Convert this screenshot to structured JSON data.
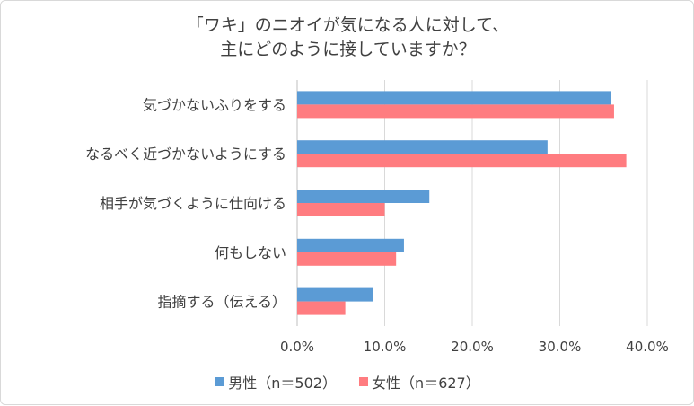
{
  "chart_data": {
    "type": "bar",
    "orientation": "horizontal",
    "title_lines": [
      "「ワキ」のニオイが気になる人に対して、",
      "主にどのように接していますか？"
    ],
    "categories": [
      "気づかないふりをする",
      "なるべく近づかないようにする",
      "相手が気づくように仕向ける",
      "何もしない",
      "指摘する（伝える）"
    ],
    "series": [
      {
        "name": "男性（n＝502）",
        "color": "#5b9bd5",
        "values": [
          35.8,
          28.6,
          15.1,
          12.2,
          8.7
        ]
      },
      {
        "name": "女性（n＝627）",
        "color": "#ff7c80",
        "values": [
          36.2,
          37.6,
          10.0,
          11.3,
          5.5
        ]
      }
    ],
    "xlim": [
      0,
      40
    ],
    "xticks": [
      "0.0%",
      "10.0%",
      "20.0%",
      "30.0%",
      "40.0%"
    ],
    "grid": true,
    "legend_position": "bottom"
  }
}
